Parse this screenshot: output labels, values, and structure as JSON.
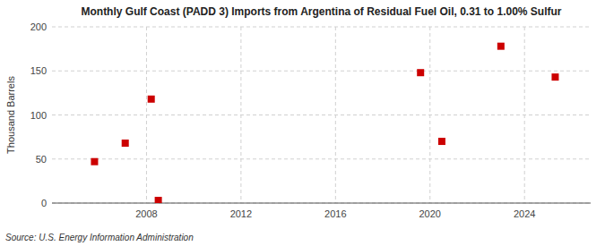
{
  "chart_data": {
    "type": "scatter",
    "title": "Monthly Gulf Coast (PADD 3) Imports from Argentina of Residual Fuel Oil, 0.31 to 1.00% Sulfur",
    "ylabel": "Thousand Barrels",
    "source": "Source: U.S. Energy Information Administration",
    "x": [
      2005.8,
      2007.1,
      2008.2,
      2008.5,
      2019.6,
      2020.5,
      2023.0,
      2025.3
    ],
    "values": [
      47,
      68,
      118,
      3,
      148,
      70,
      178,
      143
    ],
    "color": "#cc0000",
    "marker": "square",
    "xlim": [
      2004.0,
      2026.8
    ],
    "ylim": [
      0,
      200
    ],
    "xticks": [
      2008,
      2012,
      2016,
      2020,
      2024
    ],
    "yticks": [
      0,
      50,
      100,
      150,
      200
    ],
    "grid": true
  }
}
